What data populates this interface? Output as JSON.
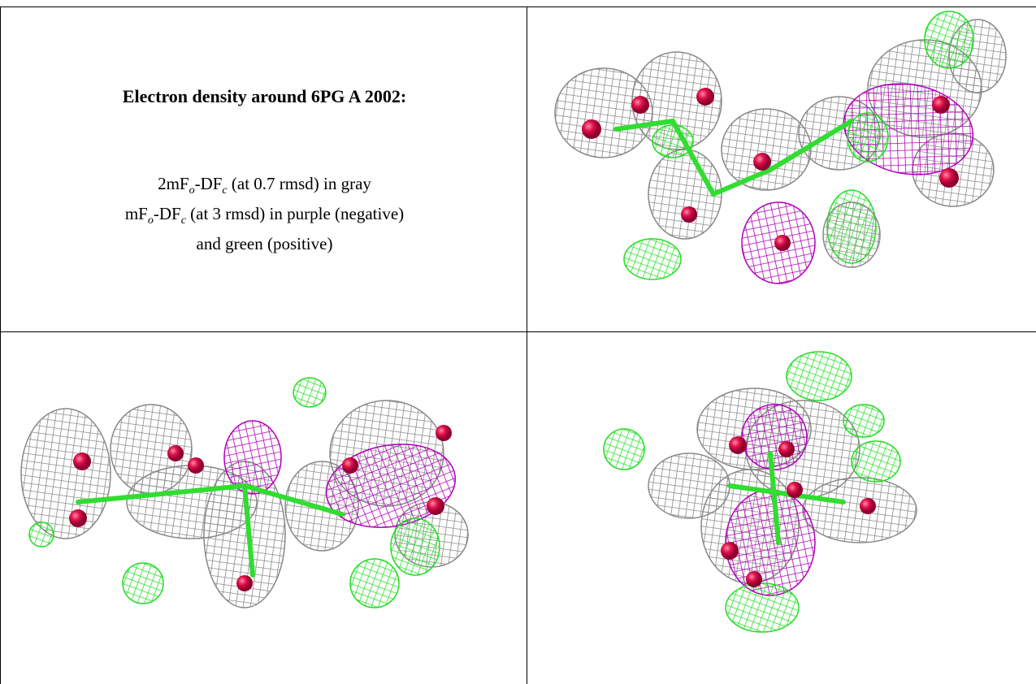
{
  "caption": {
    "title": "Electron density around 6PG A 2002:",
    "lines": [
      [
        "2mF",
        "o",
        "-DF",
        "c",
        " (at 0.7 rmsd) in gray"
      ],
      [
        "mF",
        "o",
        "-DF",
        "c",
        " (at 3 rmsd) in purple (negative)"
      ],
      [
        "and green (positive)"
      ]
    ]
  }
}
